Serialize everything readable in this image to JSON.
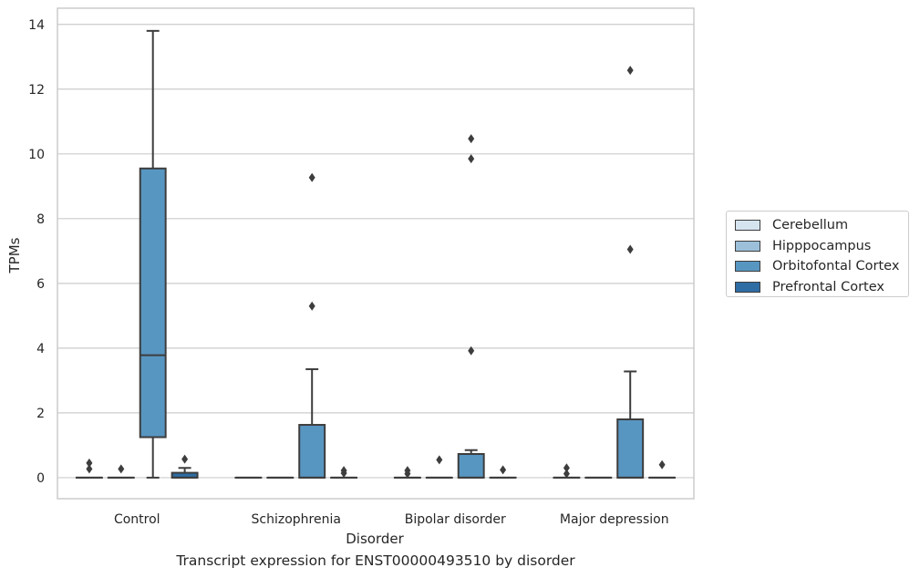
{
  "chart_data": {
    "type": "boxplot",
    "title": "",
    "caption": "Transcript expression for ENST00000493510 by disorder",
    "xlabel": "Disorder",
    "ylabel": "TPMs",
    "ylim": [
      -0.65,
      14.5
    ],
    "yticks": [
      0,
      2,
      4,
      6,
      8,
      10,
      12,
      14
    ],
    "grid": "horizontal",
    "legend_position": "right",
    "categories": [
      "Control",
      "Schizophrenia",
      "Bipolar disorder",
      "Major depression"
    ],
    "series": [
      {
        "name": "Cerebellum",
        "color": "#d6e4f0",
        "boxes": [
          {
            "q1": 0,
            "median": 0,
            "q3": 0,
            "whislo": 0,
            "whishi": 0,
            "fliers": [
              0.27,
              0.45
            ]
          },
          {
            "q1": 0,
            "median": 0,
            "q3": 0,
            "whislo": 0,
            "whishi": 0,
            "fliers": []
          },
          {
            "q1": 0,
            "median": 0,
            "q3": 0,
            "whislo": 0,
            "whishi": 0,
            "fliers": [
              0.12,
              0.22
            ]
          },
          {
            "q1": 0,
            "median": 0,
            "q3": 0,
            "whislo": 0,
            "whishi": 0,
            "fliers": [
              0.12,
              0.3
            ]
          }
        ]
      },
      {
        "name": "Hipppocampus",
        "color": "#9cc0da",
        "boxes": [
          {
            "q1": 0,
            "median": 0,
            "q3": 0,
            "whislo": 0,
            "whishi": 0,
            "fliers": [
              0.27
            ]
          },
          {
            "q1": 0,
            "median": 0,
            "q3": 0,
            "whislo": 0,
            "whishi": 0,
            "fliers": []
          },
          {
            "q1": 0,
            "median": 0,
            "q3": 0,
            "whislo": 0,
            "whishi": 0,
            "fliers": [
              0.55
            ]
          },
          {
            "q1": 0,
            "median": 0,
            "q3": 0,
            "whislo": 0,
            "whishi": 0,
            "fliers": []
          }
        ]
      },
      {
        "name": "Orbitofontal Cortex",
        "color": "#5896c2",
        "boxes": [
          {
            "q1": 1.25,
            "median": 3.78,
            "q3": 9.55,
            "whislo": 0,
            "whishi": 13.8,
            "fliers": []
          },
          {
            "q1": 0,
            "median": 0,
            "q3": 1.63,
            "whislo": 0,
            "whishi": 3.35,
            "fliers": [
              5.3,
              9.27
            ]
          },
          {
            "q1": 0,
            "median": 0,
            "q3": 0.73,
            "whislo": 0,
            "whishi": 0.85,
            "fliers": [
              3.92,
              9.85,
              10.47
            ]
          },
          {
            "q1": 0,
            "median": 0,
            "q3": 1.8,
            "whislo": 0,
            "whishi": 3.28,
            "fliers": [
              7.05,
              12.58
            ]
          }
        ]
      },
      {
        "name": "Prefrontal Cortex",
        "color": "#2e6ca4",
        "boxes": [
          {
            "q1": 0,
            "median": 0,
            "q3": 0.15,
            "whislo": 0,
            "whishi": 0.3,
            "fliers": [
              0.57
            ]
          },
          {
            "q1": 0,
            "median": 0,
            "q3": 0,
            "whislo": 0,
            "whishi": 0,
            "fliers": [
              0.14,
              0.22
            ]
          },
          {
            "q1": 0,
            "median": 0,
            "q3": 0,
            "whislo": 0,
            "whishi": 0,
            "fliers": [
              0.24
            ]
          },
          {
            "q1": 0,
            "median": 0,
            "q3": 0,
            "whislo": 0,
            "whishi": 0,
            "fliers": [
              0.4
            ]
          }
        ]
      }
    ]
  }
}
